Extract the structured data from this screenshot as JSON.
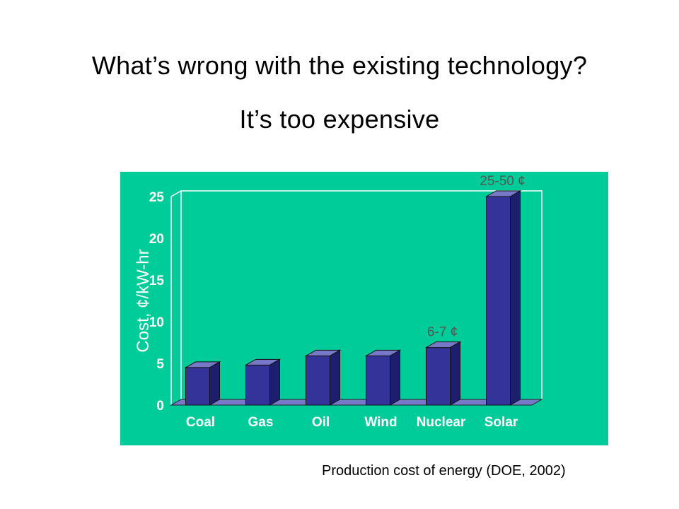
{
  "slide": {
    "title": "What’s wrong with the existing technology?",
    "subtitle": "It’s too expensive",
    "caption": "Production cost of energy (DOE, 2002)"
  },
  "colors": {
    "background": "#00cc99",
    "bar_face": "#333399",
    "bar_top": "#7878c8",
    "bar_side": "#1e1e6e",
    "annotation": "#555555",
    "labels": "#ffffff"
  },
  "chart_data": {
    "type": "bar",
    "title": "",
    "xlabel": "",
    "ylabel": "Cost, ¢/kW-hr",
    "ylim": [
      0,
      25
    ],
    "yticks": [
      "0",
      "5",
      "10",
      "15",
      "20",
      "25"
    ],
    "categories": [
      "Coal",
      "Gas",
      "Oil",
      "Wind",
      "Nuclear",
      "Solar"
    ],
    "values": [
      4.5,
      4.8,
      5.9,
      5.9,
      6.9,
      25
    ],
    "annotations": [
      {
        "category": "Nuclear",
        "text": "6-7 ¢"
      },
      {
        "category": "Solar",
        "text": "25-50 ¢"
      }
    ],
    "grid": false,
    "style": "3d"
  }
}
